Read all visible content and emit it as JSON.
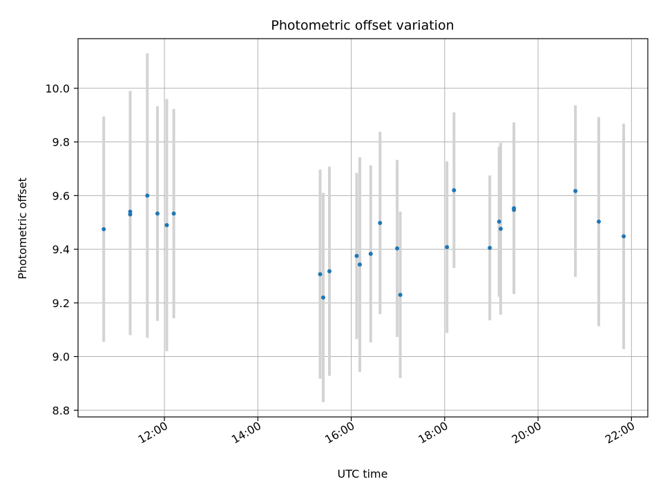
{
  "chart_data": {
    "type": "scatter",
    "title": "Photometric offset variation",
    "xlabel": "UTC time",
    "ylabel": "Photometric offset",
    "xlim": [
      "10:09",
      "22:21"
    ],
    "ylim": [
      8.775,
      10.185
    ],
    "x_ticks": [
      "12:00",
      "14:00",
      "16:00",
      "18:00",
      "20:00",
      "22:00"
    ],
    "y_ticks": [
      "8.8",
      "9.0",
      "9.2",
      "9.4",
      "9.6",
      "9.8",
      "10.0"
    ],
    "grid": true,
    "colors": {
      "point": "#1f77b4",
      "errorbar": "#d3d3d3",
      "grid": "#b0b0b0"
    },
    "points": [
      {
        "x": "10:42",
        "y": 9.475,
        "err": 0.42
      },
      {
        "x": "11:16",
        "y": 9.54,
        "err": 0.45
      },
      {
        "x": "11:16",
        "y": 9.53,
        "err": 0.45
      },
      {
        "x": "11:38",
        "y": 9.6,
        "err": 0.53
      },
      {
        "x": "11:51",
        "y": 9.533,
        "err": 0.4
      },
      {
        "x": "12:03",
        "y": 9.49,
        "err": 0.47
      },
      {
        "x": "12:12",
        "y": 9.533,
        "err": 0.39
      },
      {
        "x": "15:20",
        "y": 9.307,
        "err": 0.39
      },
      {
        "x": "15:24",
        "y": 9.22,
        "err": 0.39
      },
      {
        "x": "15:32",
        "y": 9.318,
        "err": 0.39
      },
      {
        "x": "16:07",
        "y": 9.375,
        "err": 0.31
      },
      {
        "x": "16:11",
        "y": 9.343,
        "err": 0.4
      },
      {
        "x": "16:25",
        "y": 9.383,
        "err": 0.33
      },
      {
        "x": "16:37",
        "y": 9.498,
        "err": 0.34
      },
      {
        "x": "16:59",
        "y": 9.403,
        "err": 0.33
      },
      {
        "x": "17:03",
        "y": 9.23,
        "err": 0.31
      },
      {
        "x": "18:03",
        "y": 9.408,
        "err": 0.32
      },
      {
        "x": "18:12",
        "y": 9.62,
        "err": 0.29
      },
      {
        "x": "18:58",
        "y": 9.405,
        "err": 0.27
      },
      {
        "x": "19:10",
        "y": 9.503,
        "err": 0.28
      },
      {
        "x": "19:12",
        "y": 9.476,
        "err": 0.32
      },
      {
        "x": "19:29",
        "y": 9.553,
        "err": 0.32
      },
      {
        "x": "19:29",
        "y": 9.547,
        "err": 0.31
      },
      {
        "x": "20:48",
        "y": 9.617,
        "err": 0.32
      },
      {
        "x": "21:18",
        "y": 9.503,
        "err": 0.39
      },
      {
        "x": "21:50",
        "y": 9.448,
        "err": 0.42
      }
    ]
  }
}
